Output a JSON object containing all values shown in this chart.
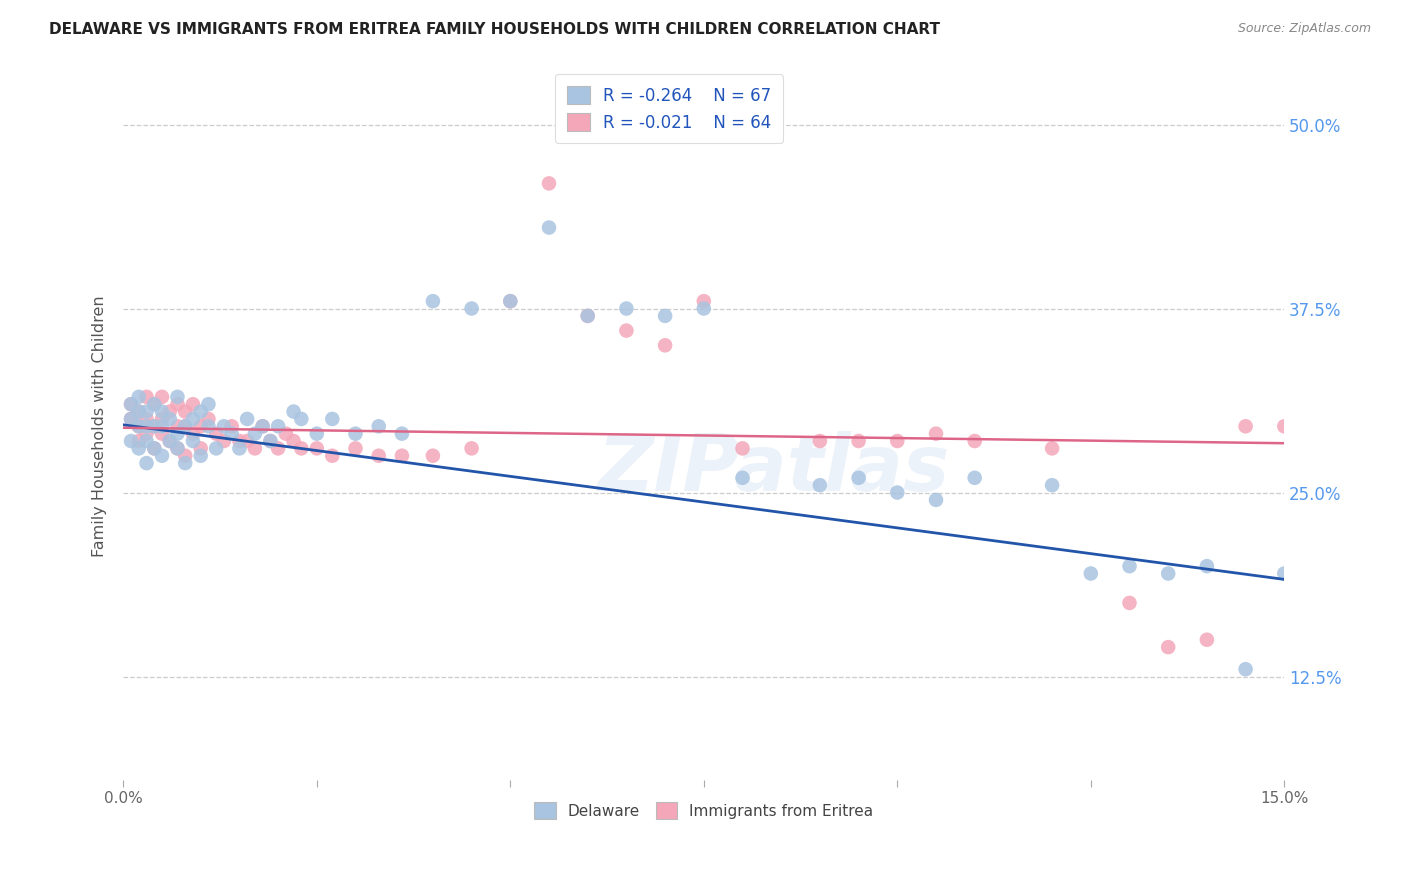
{
  "title": "DELAWARE VS IMMIGRANTS FROM ERITREA FAMILY HOUSEHOLDS WITH CHILDREN CORRELATION CHART",
  "source": "Source: ZipAtlas.com",
  "ylabel": "Family Households with Children",
  "xmin": 0.0,
  "xmax": 0.15,
  "ymin": 0.055,
  "ymax": 0.535,
  "yticks": [
    0.125,
    0.25,
    0.375,
    0.5
  ],
  "ytick_labels": [
    "12.5%",
    "25.0%",
    "37.5%",
    "50.0%"
  ],
  "legend_r_delaware": "R = -0.264",
  "legend_n_delaware": "N = 67",
  "legend_r_eritrea": "R = -0.021",
  "legend_n_eritrea": "N = 64",
  "color_delaware": "#a8c4e0",
  "color_eritrea": "#f4a7b9",
  "line_color_delaware": "#2255aa",
  "line_color_eritrea": "#dd6688",
  "watermark": "ZIPatlas",
  "del_x": [
    0.001,
    0.001,
    0.001,
    0.002,
    0.002,
    0.002,
    0.002,
    0.003,
    0.003,
    0.003,
    0.003,
    0.004,
    0.004,
    0.004,
    0.005,
    0.005,
    0.005,
    0.006,
    0.006,
    0.007,
    0.007,
    0.007,
    0.008,
    0.008,
    0.009,
    0.009,
    0.01,
    0.01,
    0.011,
    0.011,
    0.012,
    0.013,
    0.014,
    0.015,
    0.016,
    0.017,
    0.018,
    0.019,
    0.02,
    0.022,
    0.023,
    0.025,
    0.027,
    0.03,
    0.033,
    0.036,
    0.04,
    0.045,
    0.05,
    0.055,
    0.06,
    0.065,
    0.07,
    0.075,
    0.08,
    0.09,
    0.095,
    0.1,
    0.105,
    0.11,
    0.12,
    0.125,
    0.13,
    0.135,
    0.14,
    0.145,
    0.15
  ],
  "del_y": [
    0.3,
    0.285,
    0.31,
    0.295,
    0.305,
    0.28,
    0.315,
    0.295,
    0.285,
    0.305,
    0.27,
    0.295,
    0.28,
    0.31,
    0.295,
    0.275,
    0.305,
    0.285,
    0.3,
    0.29,
    0.315,
    0.28,
    0.295,
    0.27,
    0.3,
    0.285,
    0.305,
    0.275,
    0.295,
    0.31,
    0.28,
    0.295,
    0.29,
    0.28,
    0.3,
    0.29,
    0.295,
    0.285,
    0.295,
    0.305,
    0.3,
    0.29,
    0.3,
    0.29,
    0.295,
    0.29,
    0.38,
    0.375,
    0.38,
    0.43,
    0.37,
    0.375,
    0.37,
    0.375,
    0.26,
    0.255,
    0.26,
    0.25,
    0.245,
    0.26,
    0.255,
    0.195,
    0.2,
    0.195,
    0.2,
    0.13,
    0.195
  ],
  "eri_x": [
    0.001,
    0.001,
    0.002,
    0.002,
    0.002,
    0.003,
    0.003,
    0.003,
    0.004,
    0.004,
    0.004,
    0.005,
    0.005,
    0.005,
    0.006,
    0.006,
    0.007,
    0.007,
    0.007,
    0.008,
    0.008,
    0.008,
    0.009,
    0.009,
    0.01,
    0.01,
    0.011,
    0.012,
    0.013,
    0.014,
    0.015,
    0.016,
    0.017,
    0.018,
    0.019,
    0.02,
    0.021,
    0.022,
    0.023,
    0.025,
    0.027,
    0.03,
    0.033,
    0.036,
    0.04,
    0.045,
    0.05,
    0.055,
    0.06,
    0.065,
    0.07,
    0.075,
    0.08,
    0.09,
    0.095,
    0.1,
    0.105,
    0.11,
    0.12,
    0.13,
    0.135,
    0.14,
    0.145,
    0.15
  ],
  "eri_y": [
    0.3,
    0.31,
    0.295,
    0.305,
    0.285,
    0.3,
    0.29,
    0.315,
    0.295,
    0.31,
    0.28,
    0.3,
    0.29,
    0.315,
    0.285,
    0.305,
    0.295,
    0.28,
    0.31,
    0.295,
    0.305,
    0.275,
    0.29,
    0.31,
    0.295,
    0.28,
    0.3,
    0.29,
    0.285,
    0.295,
    0.285,
    0.285,
    0.28,
    0.295,
    0.285,
    0.28,
    0.29,
    0.285,
    0.28,
    0.28,
    0.275,
    0.28,
    0.275,
    0.275,
    0.275,
    0.28,
    0.38,
    0.46,
    0.37,
    0.36,
    0.35,
    0.38,
    0.28,
    0.285,
    0.285,
    0.285,
    0.29,
    0.285,
    0.28,
    0.175,
    0.145,
    0.15,
    0.295,
    0.295
  ]
}
